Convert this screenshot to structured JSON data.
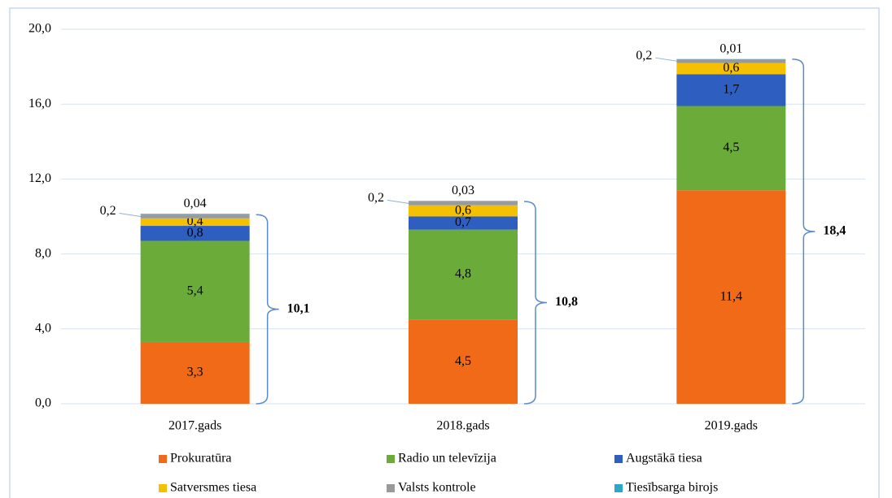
{
  "chart_data": {
    "type": "stacked_bar",
    "categories": [
      "2017.gads",
      "2018.gads",
      "2019.gads"
    ],
    "series": [
      {
        "name": "Prokuratūra",
        "color": "#f06a17",
        "values": [
          3.3,
          4.5,
          11.4
        ],
        "value_labels": [
          "3,3",
          "4,5",
          "11,4"
        ]
      },
      {
        "name": "Radio un televīzija",
        "color": "#6aab3a",
        "values": [
          5.4,
          4.8,
          4.5
        ],
        "value_labels": [
          "5,4",
          "4,8",
          "4,5"
        ]
      },
      {
        "name": "Augstākā tiesa",
        "color": "#2e5fc0",
        "values": [
          0.8,
          0.7,
          1.7
        ],
        "value_labels": [
          "0,8",
          "0,7",
          "1,7"
        ]
      },
      {
        "name": "Satversmes tiesa",
        "color": "#f5c000",
        "values": [
          0.4,
          0.6,
          0.6
        ],
        "value_labels": [
          "0,4",
          "0,6",
          "0,6"
        ]
      },
      {
        "name": "Valsts kontrole",
        "color": "#9a9a9a",
        "values": [
          0.2,
          0.2,
          0.2
        ],
        "value_labels": [
          "0,2",
          "0,2",
          "0,2"
        ]
      },
      {
        "name": "Tiesībsarga birojs",
        "color": "#2fa6c9",
        "values": [
          0.04,
          0.03,
          0.01
        ],
        "value_labels": [
          "0,04",
          "0,03",
          "0,01"
        ]
      }
    ],
    "totals": [
      {
        "value": 10.1,
        "label": "10,1"
      },
      {
        "value": 10.8,
        "label": "10,8"
      },
      {
        "value": 18.4,
        "label": "18,4"
      }
    ],
    "ylim": [
      0,
      20
    ],
    "yticks": [
      {
        "value": 0,
        "label": "0,0"
      },
      {
        "value": 4,
        "label": "4,0"
      },
      {
        "value": 8,
        "label": "8,0"
      },
      {
        "value": 12,
        "label": "12,0"
      },
      {
        "value": 16,
        "label": "16,0"
      },
      {
        "value": 20,
        "label": "20,0"
      }
    ],
    "grid": true,
    "legend": "bottom"
  }
}
